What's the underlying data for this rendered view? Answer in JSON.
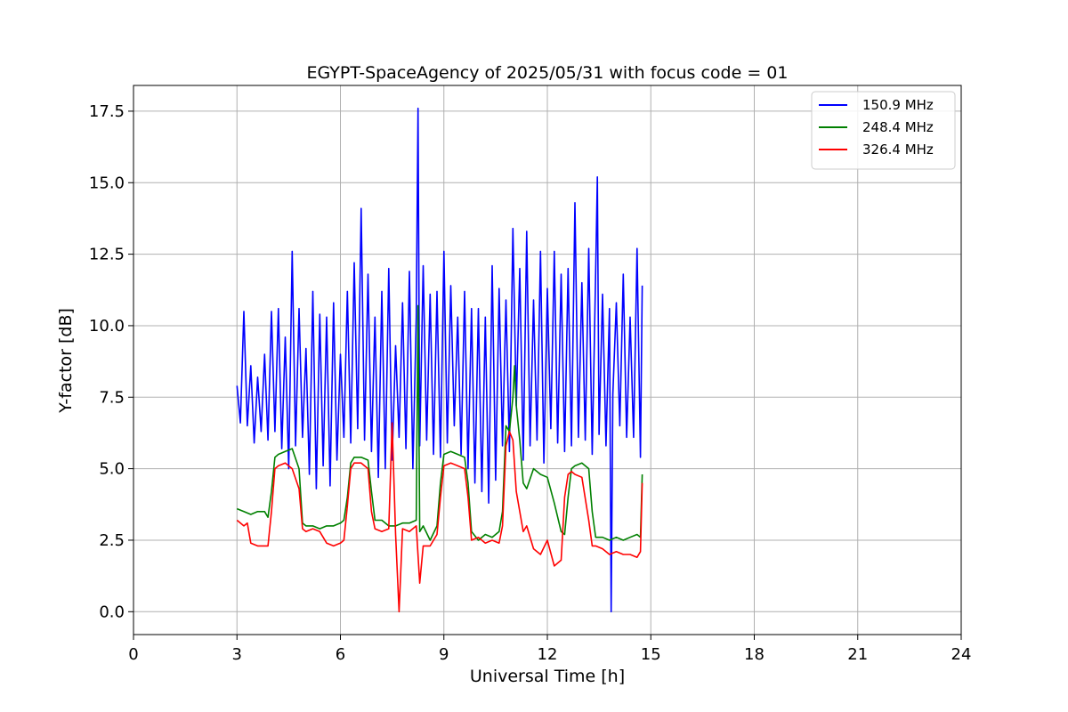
{
  "chart_data": {
    "type": "line",
    "title": "EGYPT-SpaceAgency of 2025/05/31 with focus code = 01",
    "xlabel": "Universal Time [h]",
    "ylabel": "Y-factor [dB]",
    "xlim": [
      0,
      24
    ],
    "ylim": [
      -0.8,
      18.4
    ],
    "xticks": [
      0,
      3,
      6,
      9,
      12,
      15,
      18,
      21,
      24
    ],
    "yticks": [
      0.0,
      2.5,
      5.0,
      7.5,
      10.0,
      12.5,
      15.0,
      17.5
    ],
    "xtick_labels": [
      "0",
      "3",
      "6",
      "9",
      "12",
      "15",
      "18",
      "21",
      "24"
    ],
    "ytick_labels": [
      "0.0",
      "2.5",
      "5.0",
      "7.5",
      "10.0",
      "12.5",
      "15.0",
      "17.5"
    ],
    "grid": true,
    "legend_position": "top-right",
    "series": [
      {
        "name": "150.9 MHz",
        "color": "#0000ff",
        "x": [
          3.0,
          3.1,
          3.2,
          3.3,
          3.4,
          3.5,
          3.6,
          3.7,
          3.8,
          3.9,
          4.0,
          4.1,
          4.2,
          4.3,
          4.4,
          4.5,
          4.6,
          4.7,
          4.8,
          4.9,
          5.0,
          5.1,
          5.2,
          5.3,
          5.4,
          5.5,
          5.6,
          5.7,
          5.8,
          5.9,
          6.0,
          6.1,
          6.2,
          6.3,
          6.4,
          6.5,
          6.6,
          6.7,
          6.8,
          6.9,
          7.0,
          7.1,
          7.2,
          7.3,
          7.4,
          7.5,
          7.6,
          7.7,
          7.8,
          7.9,
          8.0,
          8.1,
          8.2,
          8.25,
          8.3,
          8.4,
          8.5,
          8.6,
          8.7,
          8.8,
          8.9,
          9.0,
          9.1,
          9.2,
          9.3,
          9.4,
          9.5,
          9.6,
          9.7,
          9.8,
          9.9,
          10.0,
          10.1,
          10.2,
          10.3,
          10.4,
          10.5,
          10.6,
          10.7,
          10.8,
          10.9,
          11.0,
          11.1,
          11.2,
          11.3,
          11.4,
          11.5,
          11.6,
          11.7,
          11.8,
          11.9,
          12.0,
          12.1,
          12.2,
          12.3,
          12.4,
          12.5,
          12.6,
          12.7,
          12.8,
          12.9,
          13.0,
          13.1,
          13.2,
          13.3,
          13.4,
          13.45,
          13.5,
          13.6,
          13.7,
          13.8,
          13.85,
          13.9,
          14.0,
          14.1,
          14.2,
          14.3,
          14.4,
          14.5,
          14.6,
          14.7,
          14.75
        ],
        "y": [
          7.9,
          6.6,
          10.5,
          6.5,
          8.6,
          5.9,
          8.2,
          6.3,
          9.0,
          6.0,
          10.5,
          6.3,
          10.6,
          5.7,
          9.6,
          5.0,
          12.6,
          5.8,
          10.6,
          6.1,
          9.2,
          4.8,
          11.2,
          4.3,
          10.4,
          5.1,
          10.3,
          4.4,
          10.8,
          5.3,
          9.0,
          6.1,
          11.2,
          5.9,
          12.2,
          6.4,
          14.1,
          6.0,
          11.8,
          5.6,
          10.3,
          4.7,
          11.2,
          5.0,
          12.0,
          5.3,
          9.3,
          6.1,
          10.8,
          5.7,
          11.9,
          5.0,
          10.3,
          17.6,
          5.8,
          12.1,
          6.0,
          11.1,
          5.5,
          11.2,
          5.4,
          12.6,
          5.9,
          11.4,
          6.5,
          10.3,
          5.5,
          11.2,
          5.0,
          10.6,
          4.5,
          10.6,
          4.2,
          10.3,
          3.8,
          12.1,
          4.6,
          11.3,
          5.8,
          10.9,
          5.6,
          13.4,
          7.2,
          12.0,
          5.3,
          13.3,
          5.8,
          10.9,
          6.0,
          12.6,
          5.2,
          11.3,
          6.4,
          12.6,
          5.9,
          11.8,
          5.6,
          12.0,
          5.8,
          14.3,
          6.1,
          11.5,
          6.0,
          12.7,
          5.5,
          11.9,
          15.2,
          6.2,
          11.1,
          5.8,
          10.6,
          0.0,
          7.6,
          10.8,
          6.5,
          11.8,
          6.1,
          10.3,
          6.1,
          12.7,
          5.4,
          11.4
        ]
      },
      {
        "name": "248.4 MHz",
        "color": "#008000",
        "x": [
          3.0,
          3.2,
          3.4,
          3.6,
          3.8,
          3.9,
          4.0,
          4.1,
          4.2,
          4.4,
          4.6,
          4.8,
          4.9,
          5.0,
          5.2,
          5.4,
          5.6,
          5.8,
          6.0,
          6.1,
          6.2,
          6.3,
          6.4,
          6.6,
          6.8,
          6.9,
          7.0,
          7.2,
          7.4,
          7.6,
          7.8,
          8.0,
          8.2,
          8.25,
          8.3,
          8.4,
          8.6,
          8.8,
          8.9,
          9.0,
          9.2,
          9.4,
          9.6,
          9.7,
          9.8,
          10.0,
          10.2,
          10.4,
          10.6,
          10.7,
          10.8,
          10.9,
          11.0,
          11.05,
          11.1,
          11.2,
          11.3,
          11.4,
          11.6,
          11.8,
          12.0,
          12.2,
          12.4,
          12.5,
          12.6,
          12.7,
          12.8,
          13.0,
          13.2,
          13.3,
          13.4,
          13.6,
          13.8,
          14.0,
          14.2,
          14.4,
          14.6,
          14.7,
          14.75
        ],
        "y": [
          3.6,
          3.5,
          3.4,
          3.5,
          3.5,
          3.3,
          4.2,
          5.4,
          5.5,
          5.6,
          5.7,
          5.0,
          3.1,
          3.0,
          3.0,
          2.9,
          3.0,
          3.0,
          3.1,
          3.2,
          4.0,
          5.2,
          5.4,
          5.4,
          5.3,
          4.2,
          3.2,
          3.2,
          3.0,
          3.0,
          3.1,
          3.1,
          3.2,
          10.7,
          2.8,
          3.0,
          2.5,
          3.0,
          4.5,
          5.5,
          5.6,
          5.5,
          5.4,
          4.5,
          2.8,
          2.5,
          2.7,
          2.6,
          2.8,
          3.5,
          6.5,
          6.3,
          7.5,
          8.6,
          7.2,
          6.0,
          4.5,
          4.3,
          5.0,
          4.8,
          4.7,
          3.8,
          2.8,
          2.7,
          4.0,
          5.0,
          5.1,
          5.2,
          5.0,
          3.5,
          2.6,
          2.6,
          2.5,
          2.6,
          2.5,
          2.6,
          2.7,
          2.6,
          4.8
        ]
      },
      {
        "name": "326.4 MHz",
        "color": "#ff0000",
        "x": [
          3.0,
          3.2,
          3.3,
          3.4,
          3.6,
          3.8,
          3.9,
          4.0,
          4.1,
          4.2,
          4.4,
          4.6,
          4.8,
          4.9,
          5.0,
          5.2,
          5.4,
          5.6,
          5.8,
          6.0,
          6.1,
          6.2,
          6.3,
          6.4,
          6.6,
          6.8,
          6.9,
          7.0,
          7.2,
          7.4,
          7.5,
          7.6,
          7.7,
          7.8,
          8.0,
          8.2,
          8.3,
          8.4,
          8.6,
          8.8,
          8.9,
          9.0,
          9.2,
          9.4,
          9.6,
          9.7,
          9.8,
          10.0,
          10.2,
          10.4,
          10.6,
          10.7,
          10.8,
          10.9,
          11.0,
          11.1,
          11.2,
          11.3,
          11.4,
          11.6,
          11.8,
          12.0,
          12.2,
          12.4,
          12.5,
          12.6,
          12.7,
          12.8,
          13.0,
          13.2,
          13.3,
          13.4,
          13.6,
          13.8,
          14.0,
          14.2,
          14.4,
          14.6,
          14.7,
          14.75
        ],
        "y": [
          3.2,
          3.0,
          3.1,
          2.4,
          2.3,
          2.3,
          2.3,
          3.5,
          5.0,
          5.1,
          5.2,
          5.0,
          4.3,
          2.9,
          2.8,
          2.9,
          2.8,
          2.4,
          2.3,
          2.4,
          2.5,
          3.7,
          5.0,
          5.2,
          5.2,
          5.0,
          3.5,
          2.9,
          2.8,
          2.9,
          6.6,
          2.7,
          0.0,
          2.9,
          2.8,
          3.0,
          1.0,
          2.3,
          2.3,
          2.7,
          4.0,
          5.1,
          5.2,
          5.1,
          5.0,
          4.0,
          2.5,
          2.6,
          2.4,
          2.5,
          2.4,
          3.0,
          5.8,
          6.3,
          6.0,
          4.2,
          3.5,
          2.8,
          3.0,
          2.2,
          2.0,
          2.5,
          1.6,
          1.8,
          4.0,
          4.8,
          4.9,
          4.8,
          4.7,
          3.2,
          2.3,
          2.3,
          2.2,
          2.0,
          2.1,
          2.0,
          2.0,
          1.9,
          2.1,
          4.5
        ]
      }
    ]
  }
}
